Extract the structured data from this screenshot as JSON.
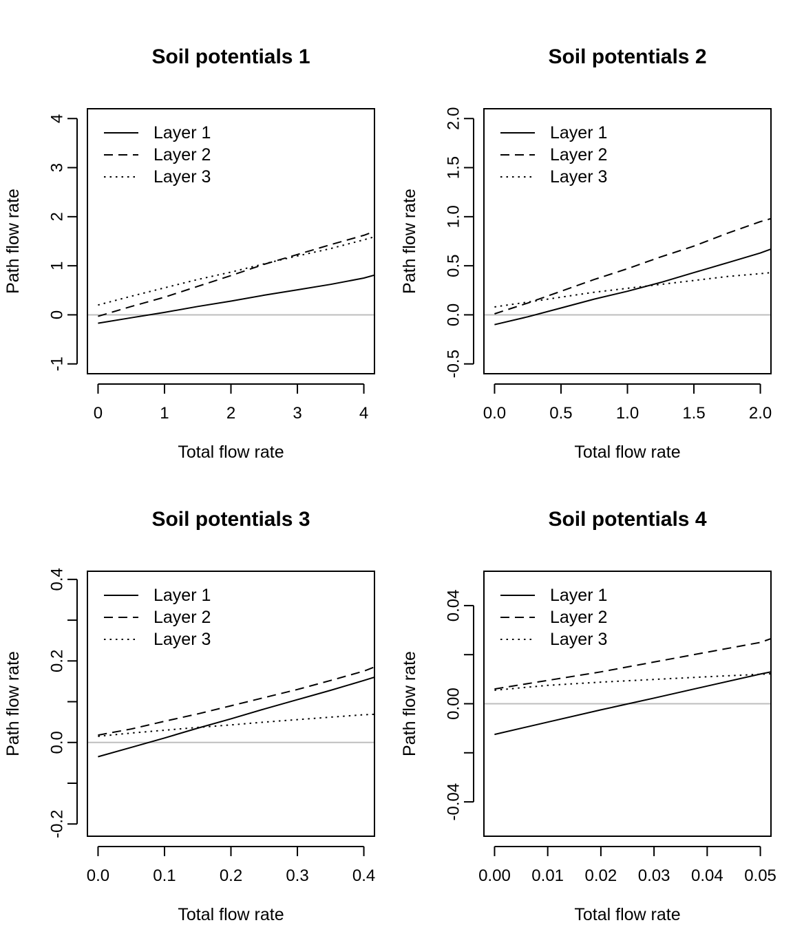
{
  "chart_data": [
    {
      "type": "line",
      "title": "Soil potentials 1",
      "xlabel": "Total flow rate",
      "ylabel": "Path flow rate",
      "xlim": [
        -0.16,
        4.16
      ],
      "ylim": [
        -1.2,
        4.2
      ],
      "xticks": [
        0,
        1,
        2,
        3,
        4
      ],
      "xtick_labels": [
        "0",
        "1",
        "2",
        "3",
        "4"
      ],
      "yticks": [
        -1,
        0,
        1,
        2,
        3,
        4
      ],
      "ytick_labels": [
        "-1",
        "0",
        "1",
        "2",
        "3",
        "4"
      ],
      "hline": 0,
      "legend_position": "top-left",
      "x": [
        0,
        0.5,
        1,
        1.5,
        2,
        2.5,
        3,
        3.5,
        4,
        4.16
      ],
      "series": [
        {
          "name": "Layer 1",
          "dash": "solid",
          "values": [
            -0.17,
            -0.06,
            0.05,
            0.17,
            0.28,
            0.4,
            0.51,
            0.62,
            0.75,
            0.81
          ]
        },
        {
          "name": "Layer 2",
          "dash": "dashed",
          "values": [
            -0.03,
            0.17,
            0.36,
            0.58,
            0.8,
            1.03,
            1.23,
            1.43,
            1.62,
            1.7
          ]
        },
        {
          "name": "Layer 3",
          "dash": "dotted",
          "values": [
            0.2,
            0.38,
            0.55,
            0.72,
            0.87,
            1.04,
            1.2,
            1.35,
            1.53,
            1.59
          ]
        }
      ]
    },
    {
      "type": "line",
      "title": "Soil potentials 2",
      "xlabel": "Total flow rate",
      "ylabel": "Path flow rate",
      "xlim": [
        -0.08,
        2.08
      ],
      "ylim": [
        -0.6,
        2.1
      ],
      "xticks": [
        0,
        0.5,
        1,
        1.5,
        2
      ],
      "xtick_labels": [
        "0.0",
        "0.5",
        "1.0",
        "1.5",
        "2.0"
      ],
      "yticks": [
        -0.5,
        0,
        0.5,
        1,
        1.5,
        2
      ],
      "ytick_labels": [
        "-0.5",
        "0.0",
        "0.5",
        "1.0",
        "1.5",
        "2.0"
      ],
      "hline": 0,
      "legend_position": "top-left",
      "x": [
        0,
        0.25,
        0.5,
        0.75,
        1,
        1.25,
        1.5,
        1.75,
        2,
        2.08
      ],
      "series": [
        {
          "name": "Layer 1",
          "dash": "solid",
          "values": [
            -0.1,
            -0.02,
            0.07,
            0.16,
            0.24,
            0.33,
            0.43,
            0.53,
            0.63,
            0.67
          ]
        },
        {
          "name": "Layer 2",
          "dash": "dashed",
          "values": [
            0.01,
            0.12,
            0.24,
            0.36,
            0.47,
            0.59,
            0.7,
            0.83,
            0.95,
            0.98
          ]
        },
        {
          "name": "Layer 3",
          "dash": "dotted",
          "values": [
            0.08,
            0.13,
            0.18,
            0.23,
            0.27,
            0.31,
            0.35,
            0.39,
            0.42,
            0.43
          ]
        }
      ]
    },
    {
      "type": "line",
      "title": "Soil potentials 3",
      "xlabel": "Total flow rate",
      "ylabel": "Path flow rate",
      "xlim": [
        -0.016,
        0.416
      ],
      "ylim": [
        -0.23,
        0.42
      ],
      "xticks": [
        0,
        0.1,
        0.2,
        0.3,
        0.4
      ],
      "xtick_labels": [
        "0.0",
        "0.1",
        "0.2",
        "0.3",
        "0.4"
      ],
      "yticks": [
        -0.2,
        -0.1,
        0,
        0.1,
        0.2,
        0.3,
        0.4
      ],
      "ytick_labels": [
        "-0.2",
        "",
        "0.0",
        "",
        "0.2",
        "",
        "0.4"
      ],
      "hline": 0,
      "legend_position": "top-left",
      "x": [
        0,
        0.05,
        0.1,
        0.15,
        0.2,
        0.25,
        0.3,
        0.35,
        0.4,
        0.416
      ],
      "series": [
        {
          "name": "Layer 1",
          "dash": "solid",
          "values": [
            -0.035,
            -0.012,
            0.011,
            0.035,
            0.058,
            0.082,
            0.105,
            0.128,
            0.152,
            0.16
          ]
        },
        {
          "name": "Layer 2",
          "dash": "dashed",
          "values": [
            0.018,
            0.033,
            0.052,
            0.07,
            0.09,
            0.11,
            0.13,
            0.152,
            0.175,
            0.185
          ]
        },
        {
          "name": "Layer 3",
          "dash": "dotted",
          "values": [
            0.015,
            0.023,
            0.03,
            0.037,
            0.043,
            0.05,
            0.056,
            0.062,
            0.068,
            0.069
          ]
        }
      ]
    },
    {
      "type": "line",
      "title": "Soil potentials 4",
      "xlabel": "Total flow rate",
      "ylabel": "Path flow rate",
      "xlim": [
        -0.002,
        0.052
      ],
      "ylim": [
        -0.054,
        0.054
      ],
      "xticks": [
        0,
        0.01,
        0.02,
        0.03,
        0.04,
        0.05
      ],
      "xtick_labels": [
        "0.00",
        "0.01",
        "0.02",
        "0.03",
        "0.04",
        "0.05"
      ],
      "yticks": [
        -0.04,
        -0.02,
        0,
        0.02,
        0.04
      ],
      "ytick_labels": [
        "-0.04",
        "",
        "0.00",
        "",
        "0.04"
      ],
      "hline": 0,
      "legend_position": "top-left",
      "x": [
        0,
        0.01,
        0.02,
        0.03,
        0.04,
        0.05,
        0.052
      ],
      "series": [
        {
          "name": "Layer 1",
          "dash": "solid",
          "values": [
            -0.0125,
            -0.0075,
            -0.0025,
            0.0023,
            0.0072,
            0.0121,
            0.013
          ]
        },
        {
          "name": "Layer 2",
          "dash": "dashed",
          "values": [
            0.006,
            0.0095,
            0.013,
            0.017,
            0.021,
            0.025,
            0.0265
          ]
        },
        {
          "name": "Layer 3",
          "dash": "dotted",
          "values": [
            0.0055,
            0.0075,
            0.0088,
            0.0099,
            0.011,
            0.012,
            0.0122
          ]
        }
      ]
    }
  ]
}
